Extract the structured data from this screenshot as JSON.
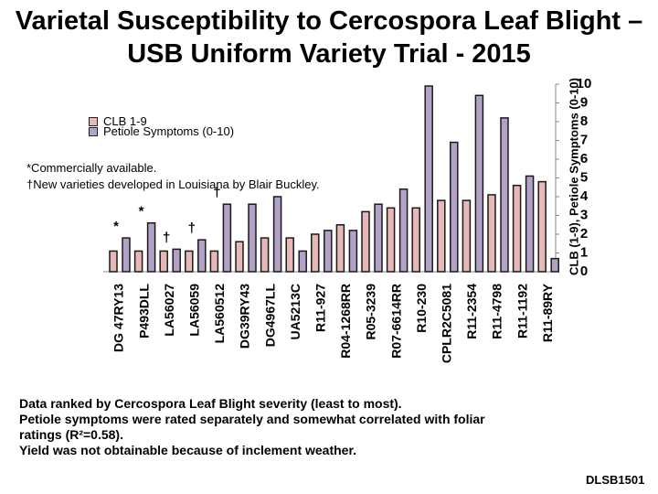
{
  "title": {
    "line1": "Varietal Susceptibility to Cercospora Leaf Blight –",
    "line2": "USB Uniform Variety Trial - 2015"
  },
  "legend": {
    "series1": "CLB 1-9",
    "series2": "Petiole Symptoms (0-10)"
  },
  "notes": {
    "line1": "*Commercially available.",
    "line2": "†New varieties developed in Louisiana by Blair Buckley."
  },
  "footer": {
    "line1": "Data ranked by Cercospora Leaf Blight severity (least to most).",
    "line2": "Petiole symptoms were rated separately and somewhat correlated with foliar",
    "line3": "ratings (R²=0.58).",
    "line4": "Yield was not obtainable because of inclement weather."
  },
  "corner_label": "DLSB1501",
  "colors": {
    "clb": "#e6b9b8",
    "petiole": "#b3a2c7"
  },
  "chart_data": {
    "type": "bar",
    "ylabel": "CLB (1-9), Petiole Symptoms (0-10)",
    "ylim": [
      0,
      10
    ],
    "yticks": [
      "0",
      "1",
      "2",
      "3",
      "4",
      "5",
      "6",
      "7",
      "8",
      "9",
      "10"
    ],
    "categories": [
      "DG 47RY13",
      "P493DLL",
      "LA56027",
      "LA56059",
      "LA560512",
      "DG39RY43",
      "DG4967LL",
      "UA5213C",
      "R11-927",
      "R04-1268RR",
      "R05-3239",
      "R07-6614RR",
      "R10-230",
      "CPLR2C5081",
      "R11-2354",
      "R11-4798",
      "R11-1192",
      "R11-89RY"
    ],
    "marks": [
      "*",
      "*",
      "†",
      "†",
      "†",
      "",
      "",
      "",
      "",
      "",
      "",
      "",
      "",
      "",
      "",
      "",
      "",
      ""
    ],
    "series": [
      {
        "name": "CLB 1-9",
        "values": [
          1.1,
          1.1,
          1.1,
          1.1,
          1.1,
          1.6,
          1.8,
          1.8,
          2.0,
          2.5,
          3.2,
          3.4,
          3.4,
          3.8,
          3.8,
          4.1,
          4.6,
          4.8
        ]
      },
      {
        "name": "Petiole Symptoms (0-10)",
        "values": [
          1.8,
          2.6,
          1.2,
          1.7,
          3.6,
          3.6,
          4.0,
          1.1,
          2.2,
          2.2,
          3.6,
          4.4,
          9.9,
          6.9,
          9.4,
          8.2,
          5.1,
          0.7
        ]
      }
    ]
  }
}
